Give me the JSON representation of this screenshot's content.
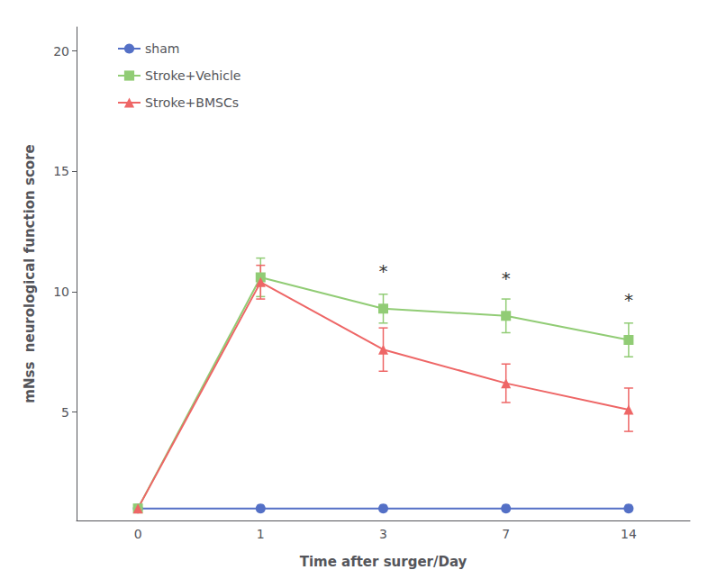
{
  "chart_data": {
    "type": "line",
    "xlabel": "Time after surger/Day",
    "ylabel": "mNss  neurological function score",
    "categories": [
      "0",
      "1",
      "3",
      "7",
      "14"
    ],
    "series": [
      {
        "name": "sham",
        "values": [
          1,
          1,
          1,
          1,
          1
        ],
        "marker": "circle"
      },
      {
        "name": "Stroke+Vehicle",
        "values": [
          1,
          10.6,
          9.3,
          9.0,
          8.0
        ],
        "errors": [
          0,
          0.8,
          0.6,
          0.7,
          0.7
        ],
        "marker": "square"
      },
      {
        "name": "Stroke+BMSCs",
        "values": [
          1,
          10.4,
          7.6,
          6.2,
          5.1
        ],
        "errors": [
          0,
          0.7,
          0.9,
          0.8,
          0.9
        ],
        "marker": "triangle"
      }
    ],
    "ylim": [
      0.5,
      21
    ],
    "yticks": [
      5,
      10,
      15,
      20
    ],
    "grid": false,
    "legend": "upper left",
    "annotations": [
      {
        "text": "*",
        "x": "3",
        "y": 10.5
      },
      {
        "text": "*",
        "x": "7",
        "y": 10.2
      },
      {
        "text": "*",
        "x": "14",
        "y": 9.3
      }
    ]
  }
}
